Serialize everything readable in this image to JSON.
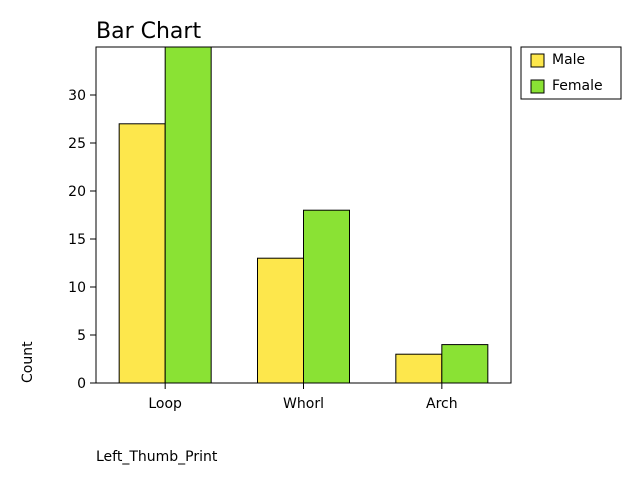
{
  "chart_data": {
    "type": "bar",
    "title": "Bar Chart",
    "xlabel": "Left_Thumb_Print",
    "ylabel": "Count",
    "categories": [
      "Loop",
      "Whorl",
      "Arch"
    ],
    "series": [
      {
        "name": "Male",
        "values": [
          27,
          13,
          3
        ],
        "color": "#fde74c"
      },
      {
        "name": "Female",
        "values": [
          35,
          18,
          4
        ],
        "color": "#8ae234"
      }
    ],
    "ylim": [
      0,
      35
    ],
    "yticks": [
      0,
      5,
      10,
      15,
      20,
      25,
      30
    ],
    "grid": false,
    "legend_position": "outside-top-right"
  }
}
